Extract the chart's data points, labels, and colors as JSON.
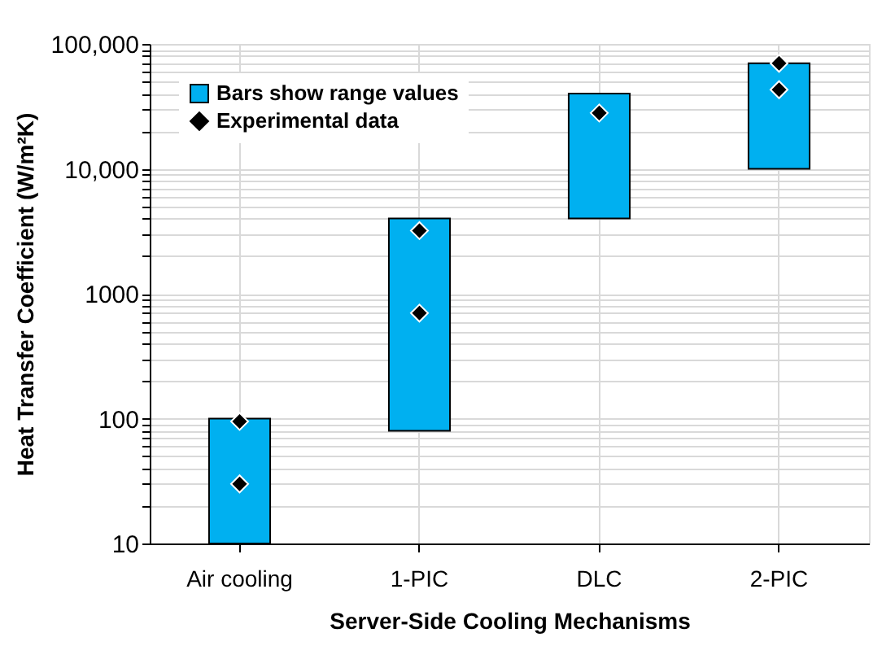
{
  "chart_data": {
    "type": "bar",
    "xlabel": "Server-Side Cooling Mechanisms",
    "ylabel": "Heat Transfer Coefficient (W/m²K)",
    "categories": [
      "Air cooling",
      "1-PIC",
      "DLC",
      "2-PIC"
    ],
    "series": [
      {
        "name": "Bars show range values",
        "color": "#00b0f0",
        "base": [
          10,
          80,
          4000,
          10000
        ],
        "values": [
          90,
          3920,
          36000,
          60000
        ]
      },
      {
        "name": "Experimental data",
        "type": "scatter",
        "color": "#000000",
        "marker": "diamond",
        "x": [
          "Air cooling",
          "Air cooling",
          "1-PIC",
          "1-PIC",
          "DLC",
          "2-PIC",
          "2-PIC"
        ],
        "values": [
          95,
          30,
          3200,
          700,
          28000,
          70000,
          43000
        ]
      }
    ],
    "log": true,
    "ylim": [
      10,
      100000
    ],
    "yticks": [
      10,
      {
        "value": 20,
        "label": null
      },
      {
        "value": 30,
        "label": null
      },
      {
        "value": 40,
        "label": null
      },
      {
        "value": 50,
        "label": null
      },
      {
        "value": 60,
        "label": null
      },
      {
        "value": 70,
        "label": null
      },
      {
        "value": 80,
        "label": null
      },
      {
        "value": 90,
        "label": null
      },
      100,
      {
        "value": 200,
        "label": null
      },
      {
        "value": 300,
        "label": null
      },
      {
        "value": 400,
        "label": null
      },
      {
        "value": 500,
        "label": null
      },
      {
        "value": 600,
        "label": null
      },
      {
        "value": 700,
        "label": null
      },
      {
        "value": 800,
        "label": null
      },
      {
        "value": 900,
        "label": null
      },
      1000,
      {
        "value": 2000,
        "label": null
      },
      {
        "value": 3000,
        "label": null
      },
      {
        "value": 4000,
        "label": null
      },
      {
        "value": 5000,
        "label": null
      },
      {
        "value": 6000,
        "label": null
      },
      {
        "value": 7000,
        "label": null
      },
      {
        "value": 8000,
        "label": null
      },
      {
        "value": 9000,
        "label": null
      },
      {
        "value": 10000,
        "label": "10,000"
      },
      {
        "value": 20000,
        "label": null
      },
      {
        "value": 30000,
        "label": null
      },
      {
        "value": 40000,
        "label": null
      },
      {
        "value": 50000,
        "label": null
      },
      {
        "value": 60000,
        "label": null
      },
      {
        "value": 70000,
        "label": null
      },
      {
        "value": 80000,
        "label": null
      },
      {
        "value": 90000,
        "label": null
      },
      {
        "value": 100000,
        "label": "100,000"
      }
    ],
    "grid": true,
    "legend": "top left"
  }
}
